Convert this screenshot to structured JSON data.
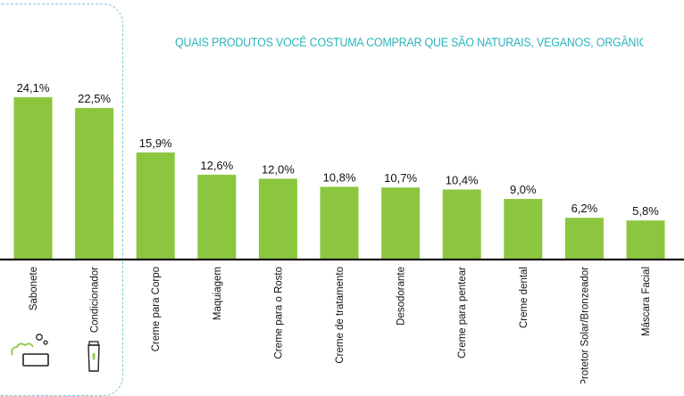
{
  "title": "QUAIS PRODUTOS VOCÊ COSTUMA COMPRAR QUE SÃO NATURAIS, VEGANOS, ORGÂNICOS, SUSTENTÁVE",
  "colors": {
    "bar": "#8cc63f",
    "axis": "#111111",
    "title": "#2bb3bd",
    "highlight_border": "#7ccbd6",
    "icon": "#8cc63f"
  },
  "icons": [
    "soap-icon",
    "conditioner-bottle-icon"
  ],
  "chart_data": {
    "type": "bar",
    "title": "QUAIS PRODUTOS VOCÊ COSTUMA COMPRAR QUE SÃO NATURAIS, VEGANOS, ORGÂNICOS, SUSTENTÁVE",
    "categories": [
      "Sabonete",
      "Condicionador",
      "Creme para Corpo",
      "Maquiagem",
      "Creme para o Rosto",
      "Creme de tratamento",
      "Desodorante",
      "Creme para pentear",
      "Creme dental",
      "Protetor Solar/Bronzeador",
      "Máscara Facial"
    ],
    "values": [
      24.1,
      22.5,
      15.9,
      12.6,
      12.0,
      10.8,
      10.7,
      10.4,
      9.0,
      6.2,
      5.8
    ],
    "value_labels": [
      "24,1%",
      "22,5%",
      "15,9%",
      "12,6%",
      "12,0%",
      "10,8%",
      "10,7%",
      "10,4%",
      "9,0%",
      "6,2%",
      "5,8%"
    ],
    "xlabel": "",
    "ylabel": "",
    "ylim": [
      0,
      28
    ],
    "grid": false,
    "highlighted_categories": [
      "Sabonete",
      "Condicionador"
    ]
  }
}
